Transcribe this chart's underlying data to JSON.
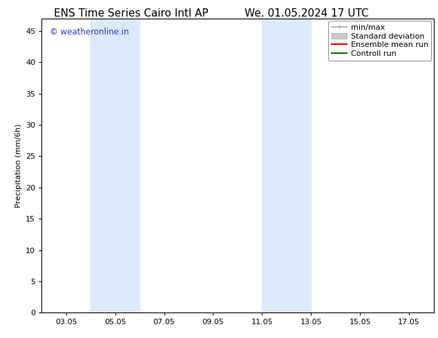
{
  "title_left": "ENS Time Series Cairo Intl AP",
  "title_right": "We. 01.05.2024 17 UTC",
  "ylabel": "Precipitation (mm/6h)",
  "xlabel_ticks": [
    "03.05",
    "05.05",
    "07.05",
    "09.05",
    "11.05",
    "13.05",
    "15.05",
    "17.05"
  ],
  "xlim": [
    2,
    18
  ],
  "ylim": [
    0,
    47
  ],
  "yticks": [
    0,
    5,
    10,
    15,
    20,
    25,
    30,
    35,
    40,
    45
  ],
  "background_color": "#ffffff",
  "plot_bg_color": "#ffffff",
  "shaded_bands": [
    {
      "xmin": 4.0,
      "xmax": 6.0,
      "color": "#daeaf8"
    },
    {
      "xmin": 11.0,
      "xmax": 13.0,
      "color": "#daeaf8"
    }
  ],
  "watermark_text": "© weatheronline.in",
  "watermark_color": "#3333bb",
  "legend_items": [
    {
      "label": "min/max",
      "color": "#aaaaaa",
      "lw": 1.2
    },
    {
      "label": "Standard deviation",
      "color": "#cccccc",
      "lw": 5
    },
    {
      "label": "Ensemble mean run",
      "color": "#ff0000",
      "lw": 1.5
    },
    {
      "label": "Controll run",
      "color": "#007700",
      "lw": 1.5
    }
  ],
  "tick_positions": [
    3,
    5,
    7,
    9,
    11,
    13,
    15,
    17
  ],
  "title_fontsize": 11,
  "watermark_fontsize": 8.5,
  "axis_fontsize": 8,
  "legend_fontsize": 8
}
